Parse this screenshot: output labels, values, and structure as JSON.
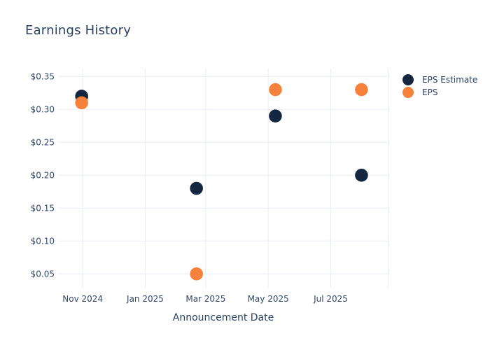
{
  "chart_data": {
    "type": "scatter",
    "title": "Earnings History",
    "xlabel": "Announcement Date",
    "ylabel": "",
    "grid": true,
    "legend_position": "right-top",
    "x_ticks": [
      {
        "date": "2024-11-01",
        "label": "Nov 2024"
      },
      {
        "date": "2025-01-01",
        "label": "Jan 2025"
      },
      {
        "date": "2025-03-01",
        "label": "Mar 2025"
      },
      {
        "date": "2025-05-01",
        "label": "May 2025"
      },
      {
        "date": "2025-07-01",
        "label": "Jul 2025"
      }
    ],
    "y_ticks": [
      {
        "value": 0.35,
        "label": "$0.35"
      },
      {
        "value": 0.3,
        "label": "$0.30"
      },
      {
        "value": 0.25,
        "label": "$0.25"
      },
      {
        "value": 0.2,
        "label": "$0.20"
      },
      {
        "value": 0.15,
        "label": "$0.15"
      },
      {
        "value": 0.1,
        "label": "$0.10"
      },
      {
        "value": 0.05,
        "label": "$0.05"
      }
    ],
    "xlim": [
      "2024-10-08",
      "2025-08-26"
    ],
    "ylim": [
      0.029,
      0.362
    ],
    "series": [
      {
        "name": "EPS Estimate",
        "color": "#152740",
        "points": [
          {
            "date": "2024-10-31",
            "value": 0.32
          },
          {
            "date": "2025-02-20",
            "value": 0.18
          },
          {
            "date": "2025-05-08",
            "value": 0.29
          },
          {
            "date": "2025-07-31",
            "value": 0.2
          }
        ]
      },
      {
        "name": "EPS",
        "color": "#f5813d",
        "points": [
          {
            "date": "2024-10-31",
            "value": 0.31
          },
          {
            "date": "2025-02-20",
            "value": 0.05
          },
          {
            "date": "2025-05-08",
            "value": 0.33
          },
          {
            "date": "2025-07-31",
            "value": 0.33
          }
        ]
      }
    ]
  },
  "colors": {
    "background": "#ffffff",
    "grid": "#e8edf5",
    "title_text": "#2b3f5e",
    "axis_text": "#32476b",
    "eps_estimate": "#152740",
    "eps": "#f5813d"
  }
}
